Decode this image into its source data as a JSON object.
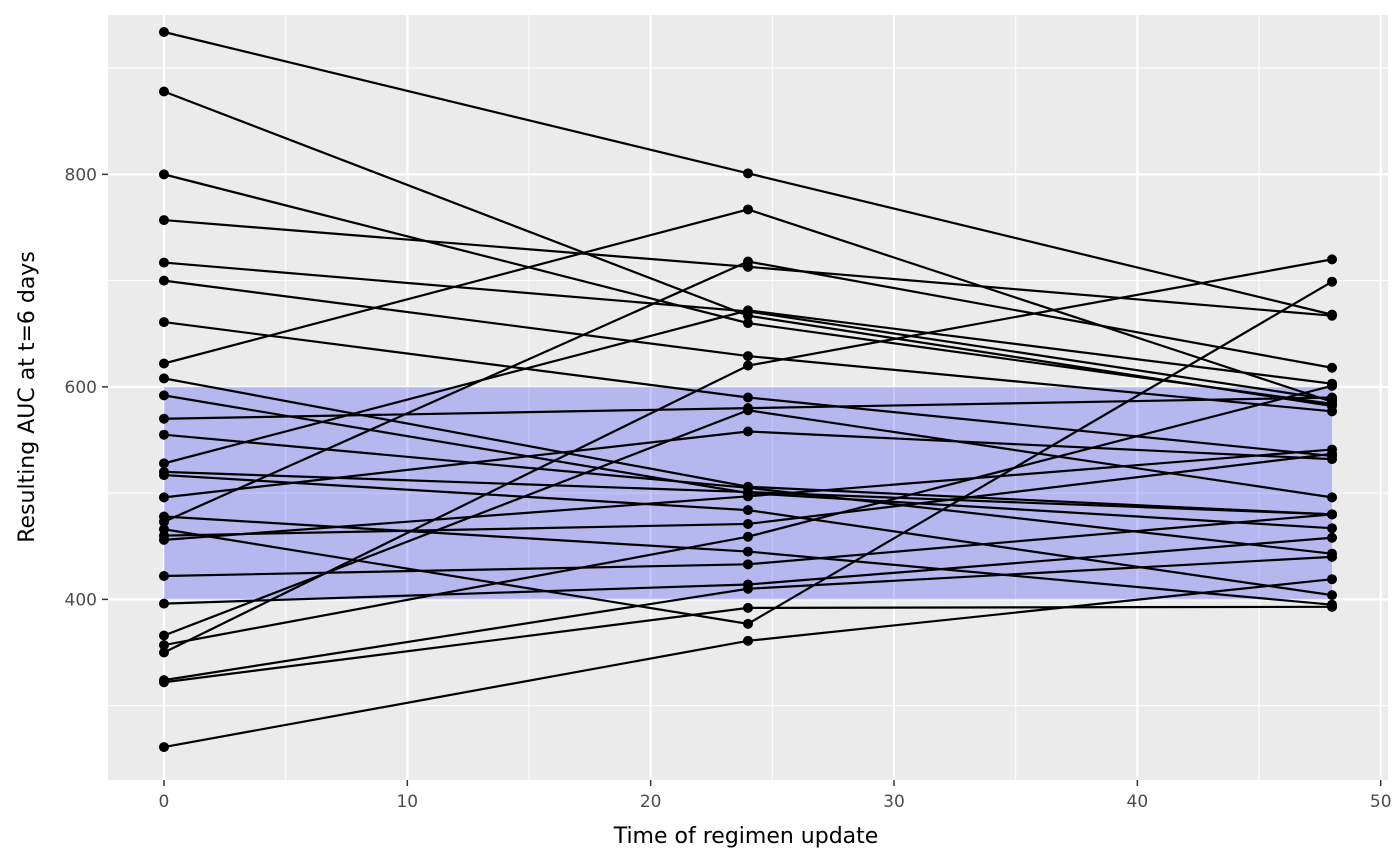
{
  "chart_data": {
    "type": "line",
    "xlabel": "Time of regimen update",
    "ylabel": "Resulting AUC at t=6 days",
    "xlim": [
      -2.3,
      50.3
    ],
    "ylim": [
      230,
      950
    ],
    "x_ticks": [
      0,
      10,
      20,
      30,
      40,
      50
    ],
    "y_ticks": [
      400,
      600,
      800
    ],
    "grid": true,
    "target_band": {
      "ymin": 400,
      "ymax": 600,
      "xmin": 0,
      "xmax": 48,
      "color": "#0000ff",
      "opacity": 0.22
    },
    "colors": {
      "panel": "#ebebeb",
      "grid": "#ffffff",
      "line": "#000000"
    },
    "x": [
      0,
      24,
      48
    ],
    "series": [
      {
        "values": [
          934,
          801,
          668
        ]
      },
      {
        "values": [
          878,
          667,
          582
        ]
      },
      {
        "values": [
          800,
          660,
          584
        ]
      },
      {
        "values": [
          757,
          713,
          667
        ]
      },
      {
        "values": [
          717,
          671,
          588
        ]
      },
      {
        "values": [
          700,
          629,
          577
        ]
      },
      {
        "values": [
          661,
          590,
          535
        ]
      },
      {
        "values": [
          622,
          767,
          586
        ]
      },
      {
        "values": [
          608,
          506,
          480
        ]
      },
      {
        "values": [
          592,
          500,
          467
        ]
      },
      {
        "values": [
          570,
          580,
          590
        ]
      },
      {
        "values": [
          555,
          505,
          443
        ]
      },
      {
        "values": [
          528,
          672,
          603
        ]
      },
      {
        "values": [
          520,
          501,
          480
        ]
      },
      {
        "values": [
          517,
          484,
          404
        ]
      },
      {
        "values": [
          496,
          558,
          532
        ]
      },
      {
        "values": [
          478,
          445,
          395
        ]
      },
      {
        "values": [
          473,
          718,
          618
        ]
      },
      {
        "values": [
          466,
          377,
          699
        ]
      },
      {
        "values": [
          460,
          471,
          537
        ]
      },
      {
        "values": [
          456,
          497,
          541
        ]
      },
      {
        "values": [
          422,
          433,
          480
        ]
      },
      {
        "values": [
          396,
          414,
          458
        ]
      },
      {
        "values": [
          366,
          578,
          496
        ]
      },
      {
        "values": [
          357,
          459,
          601
        ]
      },
      {
        "values": [
          350,
          620,
          720
        ]
      },
      {
        "values": [
          324,
          410,
          440
        ]
      },
      {
        "values": [
          322,
          392,
          393
        ]
      },
      {
        "values": [
          261,
          361,
          419
        ]
      }
    ]
  }
}
